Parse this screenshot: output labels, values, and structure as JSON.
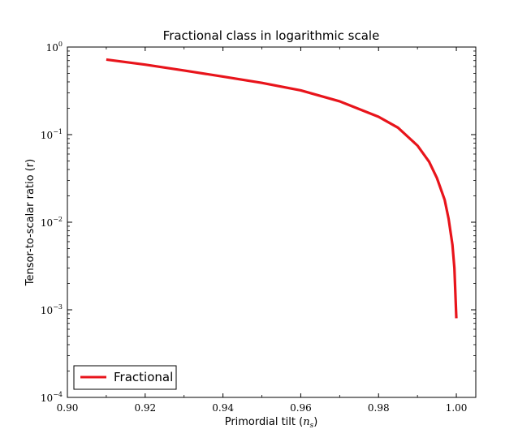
{
  "chart_data": {
    "type": "line",
    "title": "Fractional class in logarithmic scale",
    "xlabel": "Primordial tilt (",
    "xlabel_math": "n",
    "xlabel_math_sub": "s",
    "xlabel_close": ")",
    "ylabel": "Tensor-to-scalar ratio (r)",
    "xlim": [
      0.9,
      1.005
    ],
    "ylim": [
      0.0001,
      1
    ],
    "yscale": "log",
    "grid": false,
    "legend_position": "lower-left",
    "x_ticks": [
      {
        "value": 0.9,
        "label": "0.90"
      },
      {
        "value": 0.92,
        "label": "0.92"
      },
      {
        "value": 0.94,
        "label": "0.94"
      },
      {
        "value": 0.96,
        "label": "0.96"
      },
      {
        "value": 0.98,
        "label": "0.98"
      },
      {
        "value": 1.0,
        "label": "1.00"
      }
    ],
    "y_ticks": [
      {
        "value": 1,
        "base": "10",
        "exp": "0"
      },
      {
        "value": 0.1,
        "base": "10",
        "exp": "−1"
      },
      {
        "value": 0.01,
        "base": "10",
        "exp": "−2"
      },
      {
        "value": 0.001,
        "base": "10",
        "exp": "−3"
      },
      {
        "value": 0.0001,
        "base": "10",
        "exp": "−4"
      }
    ],
    "series": [
      {
        "name": "Fractional",
        "color": "#e8141b",
        "x": [
          0.91,
          0.92,
          0.93,
          0.94,
          0.95,
          0.96,
          0.97,
          0.98,
          0.985,
          0.99,
          0.993,
          0.995,
          0.997,
          0.998,
          0.999,
          0.9995,
          1.0
        ],
        "y": [
          0.72,
          0.63,
          0.54,
          0.46,
          0.39,
          0.32,
          0.24,
          0.16,
          0.12,
          0.075,
          0.049,
          0.032,
          0.018,
          0.011,
          0.0055,
          0.003,
          0.0008
        ]
      }
    ]
  }
}
